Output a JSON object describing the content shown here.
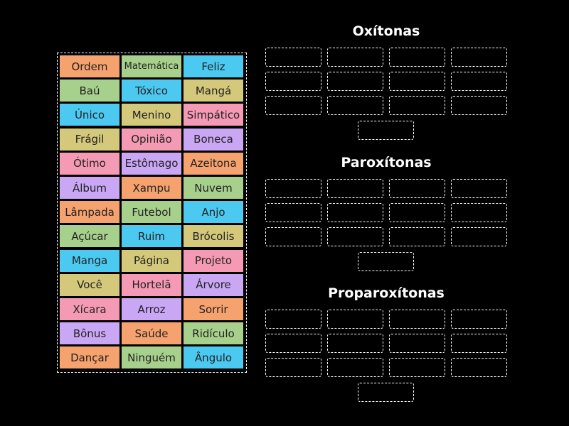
{
  "tiles": [
    [
      {
        "text": "Ordem",
        "color": "#f5a26e"
      },
      {
        "text": "Matemática",
        "color": "#a8d08d"
      },
      {
        "text": "Feliz",
        "color": "#4cc9f0"
      }
    ],
    [
      {
        "text": "Baú",
        "color": "#a8d08d"
      },
      {
        "text": "Tóxico",
        "color": "#4cc9f0"
      },
      {
        "text": "Mangá",
        "color": "#d4c97a"
      }
    ],
    [
      {
        "text": "Único",
        "color": "#4cc9f0"
      },
      {
        "text": "Menino",
        "color": "#d4c97a"
      },
      {
        "text": "Simpático",
        "color": "#f59ab5"
      }
    ],
    [
      {
        "text": "Frágil",
        "color": "#d4c97a"
      },
      {
        "text": "Opinião",
        "color": "#f59ab5"
      },
      {
        "text": "Boneca",
        "color": "#c9a7f5"
      }
    ],
    [
      {
        "text": "Ótimo",
        "color": "#f59ab5"
      },
      {
        "text": "Estômago",
        "color": "#c9a7f5"
      },
      {
        "text": "Azeitona",
        "color": "#f5a26e"
      }
    ],
    [
      {
        "text": "Álbum",
        "color": "#c9a7f5"
      },
      {
        "text": "Xampu",
        "color": "#f5a26e"
      },
      {
        "text": "Nuvem",
        "color": "#a8d08d"
      }
    ],
    [
      {
        "text": "Lâmpada",
        "color": "#f5a26e"
      },
      {
        "text": "Futebol",
        "color": "#a8d08d"
      },
      {
        "text": "Anjo",
        "color": "#4cc9f0"
      }
    ],
    [
      {
        "text": "Açúcar",
        "color": "#a8d08d"
      },
      {
        "text": "Ruim",
        "color": "#4cc9f0"
      },
      {
        "text": "Brócolis",
        "color": "#d4c97a"
      }
    ],
    [
      {
        "text": "Manga",
        "color": "#4cc9f0"
      },
      {
        "text": "Página",
        "color": "#d4c97a"
      },
      {
        "text": "Projeto",
        "color": "#f59ab5"
      }
    ],
    [
      {
        "text": "Você",
        "color": "#d4c97a"
      },
      {
        "text": "Hortelã",
        "color": "#f59ab5"
      },
      {
        "text": "Árvore",
        "color": "#c9a7f5"
      }
    ],
    [
      {
        "text": "Xícara",
        "color": "#f59ab5"
      },
      {
        "text": "Arroz",
        "color": "#c9a7f5"
      },
      {
        "text": "Sorrir",
        "color": "#f5a26e"
      }
    ],
    [
      {
        "text": "Bônus",
        "color": "#c9a7f5"
      },
      {
        "text": "Saúde",
        "color": "#f5a26e"
      },
      {
        "text": "Ridículo",
        "color": "#a8d08d"
      }
    ],
    [
      {
        "text": "Dançar",
        "color": "#f5a26e"
      },
      {
        "text": "Ninguém",
        "color": "#a8d08d"
      },
      {
        "text": "Ângulo",
        "color": "#4cc9f0"
      }
    ]
  ],
  "groups": [
    {
      "title": "Oxítonas"
    },
    {
      "title": "Paroxítonas"
    },
    {
      "title": "Proparoxítonas"
    }
  ]
}
